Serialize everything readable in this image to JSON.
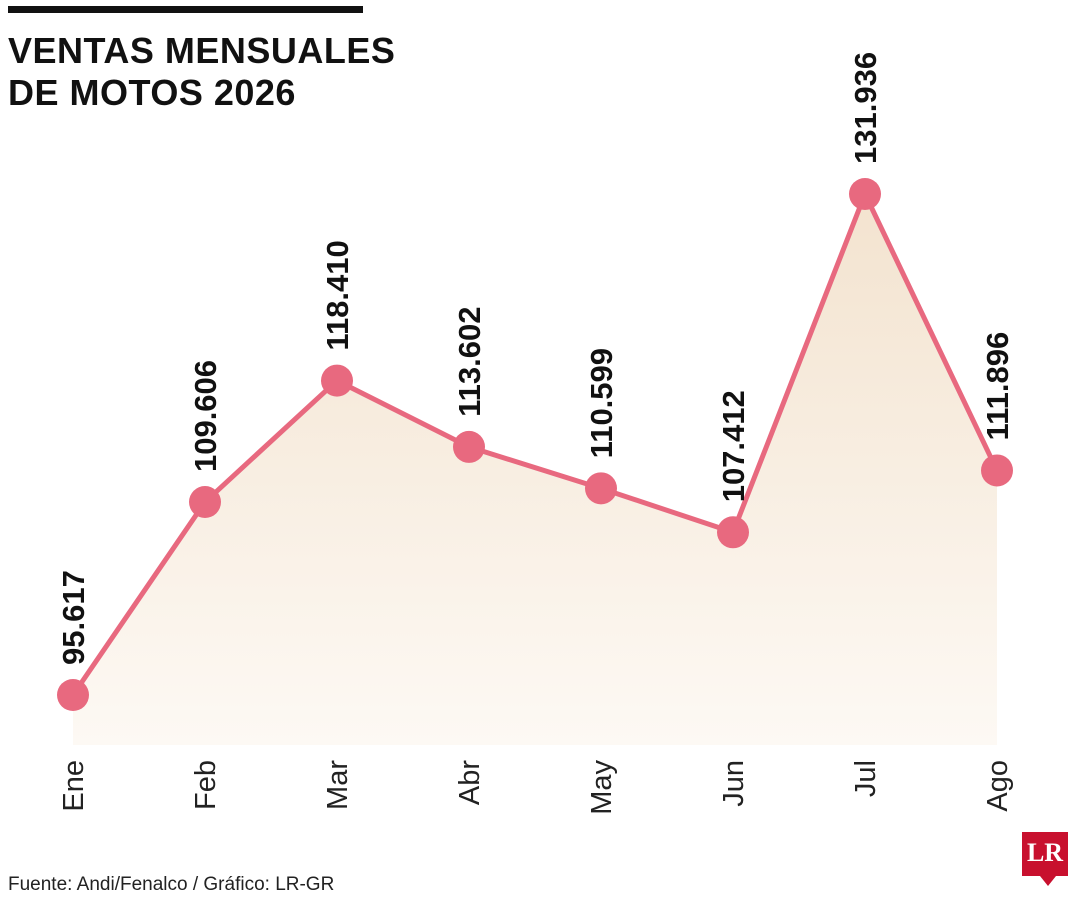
{
  "title_lines": [
    "VENTAS MENSUALES",
    "DE MOTOS 2026"
  ],
  "source": "Fuente: Andi/Fenalco / Gráfico: LR-GR",
  "logo_text": "LR",
  "colors": {
    "line": "#e8697f",
    "area_top": "#f3e3cf",
    "area_bottom": "#fdf9f4",
    "text": "#111111"
  },
  "chart_data": {
    "type": "area",
    "categories": [
      "Ene",
      "Feb",
      "Mar",
      "Abr",
      "May",
      "Jun",
      "Jul",
      "Ago"
    ],
    "values": [
      95617,
      109606,
      118410,
      113602,
      110599,
      107412,
      131936,
      111896
    ],
    "value_labels": [
      "95.617",
      "109.606",
      "118.410",
      "113.602",
      "110.599",
      "107.412",
      "131.936",
      "111.896"
    ],
    "title": "VENTAS MENSUALES DE MOTOS 2026",
    "grid": false,
    "legend": false
  }
}
